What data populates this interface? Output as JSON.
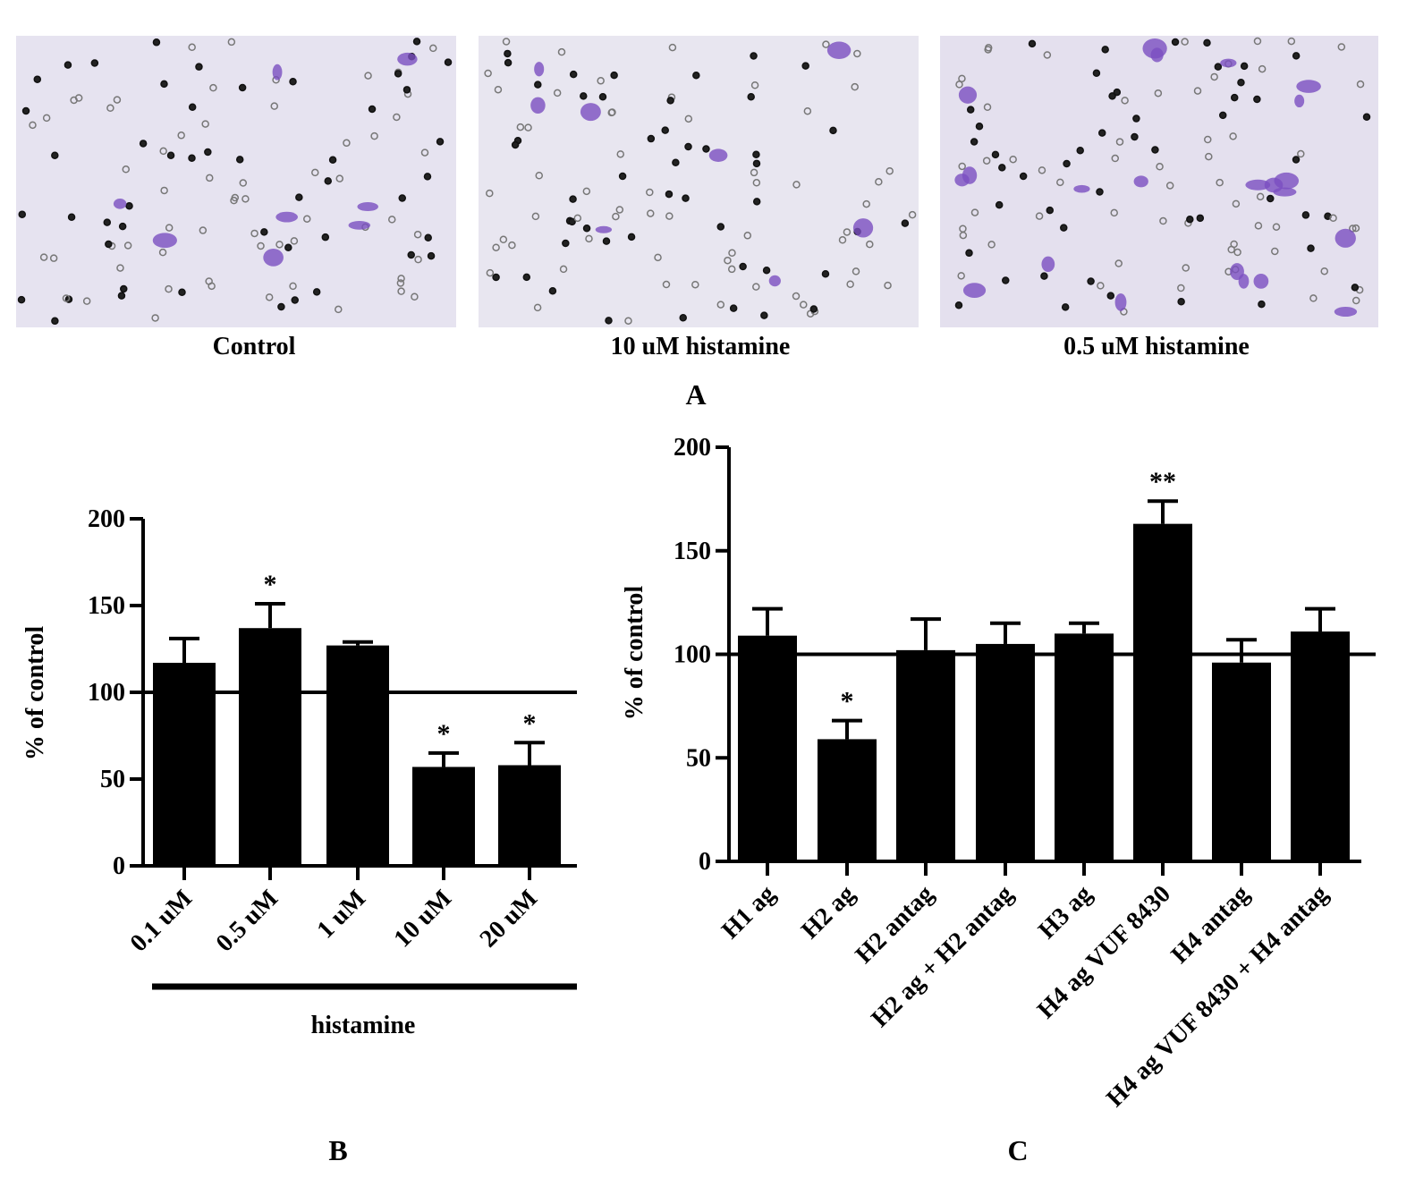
{
  "panel_a": {
    "captions": [
      "Control",
      "10 uM histamine",
      "0.5 uM histamine"
    ],
    "letter": "A"
  },
  "chart_data": [
    {
      "type": "bar",
      "panel": "B",
      "ylabel": "% of control",
      "group_label": "histamine",
      "categories": [
        "0.1 uM",
        "0.5 uM",
        "1 uM",
        "10 uM",
        "20 uM"
      ],
      "values": [
        117,
        137,
        127,
        57,
        58
      ],
      "errors": [
        14,
        14,
        2,
        8,
        13
      ],
      "significance": [
        null,
        "*",
        null,
        "*",
        "*"
      ],
      "reference_line": 100,
      "color": "#000000",
      "ylim": [
        0,
        200
      ],
      "yticks": [
        0,
        50,
        100,
        150,
        200
      ]
    },
    {
      "type": "bar",
      "panel": "C",
      "ylabel": "% of control",
      "categories": [
        "H1 ag",
        "H2 ag",
        "H2 antag",
        "H2 ag + H2 antag",
        "H3 ag",
        "H4 ag VUF 8430",
        "H4 antag",
        "H4 ag VUF 8430 + H4 antag"
      ],
      "values": [
        109,
        59,
        102,
        105,
        110,
        163,
        96,
        111
      ],
      "errors": [
        13,
        9,
        15,
        10,
        5,
        11,
        11,
        11
      ],
      "significance": [
        null,
        "*",
        null,
        null,
        null,
        "**",
        null,
        null
      ],
      "reference_line": 100,
      "color": "#000000",
      "ylim": [
        0,
        200
      ],
      "yticks": [
        0,
        50,
        100,
        150,
        200
      ]
    }
  ]
}
